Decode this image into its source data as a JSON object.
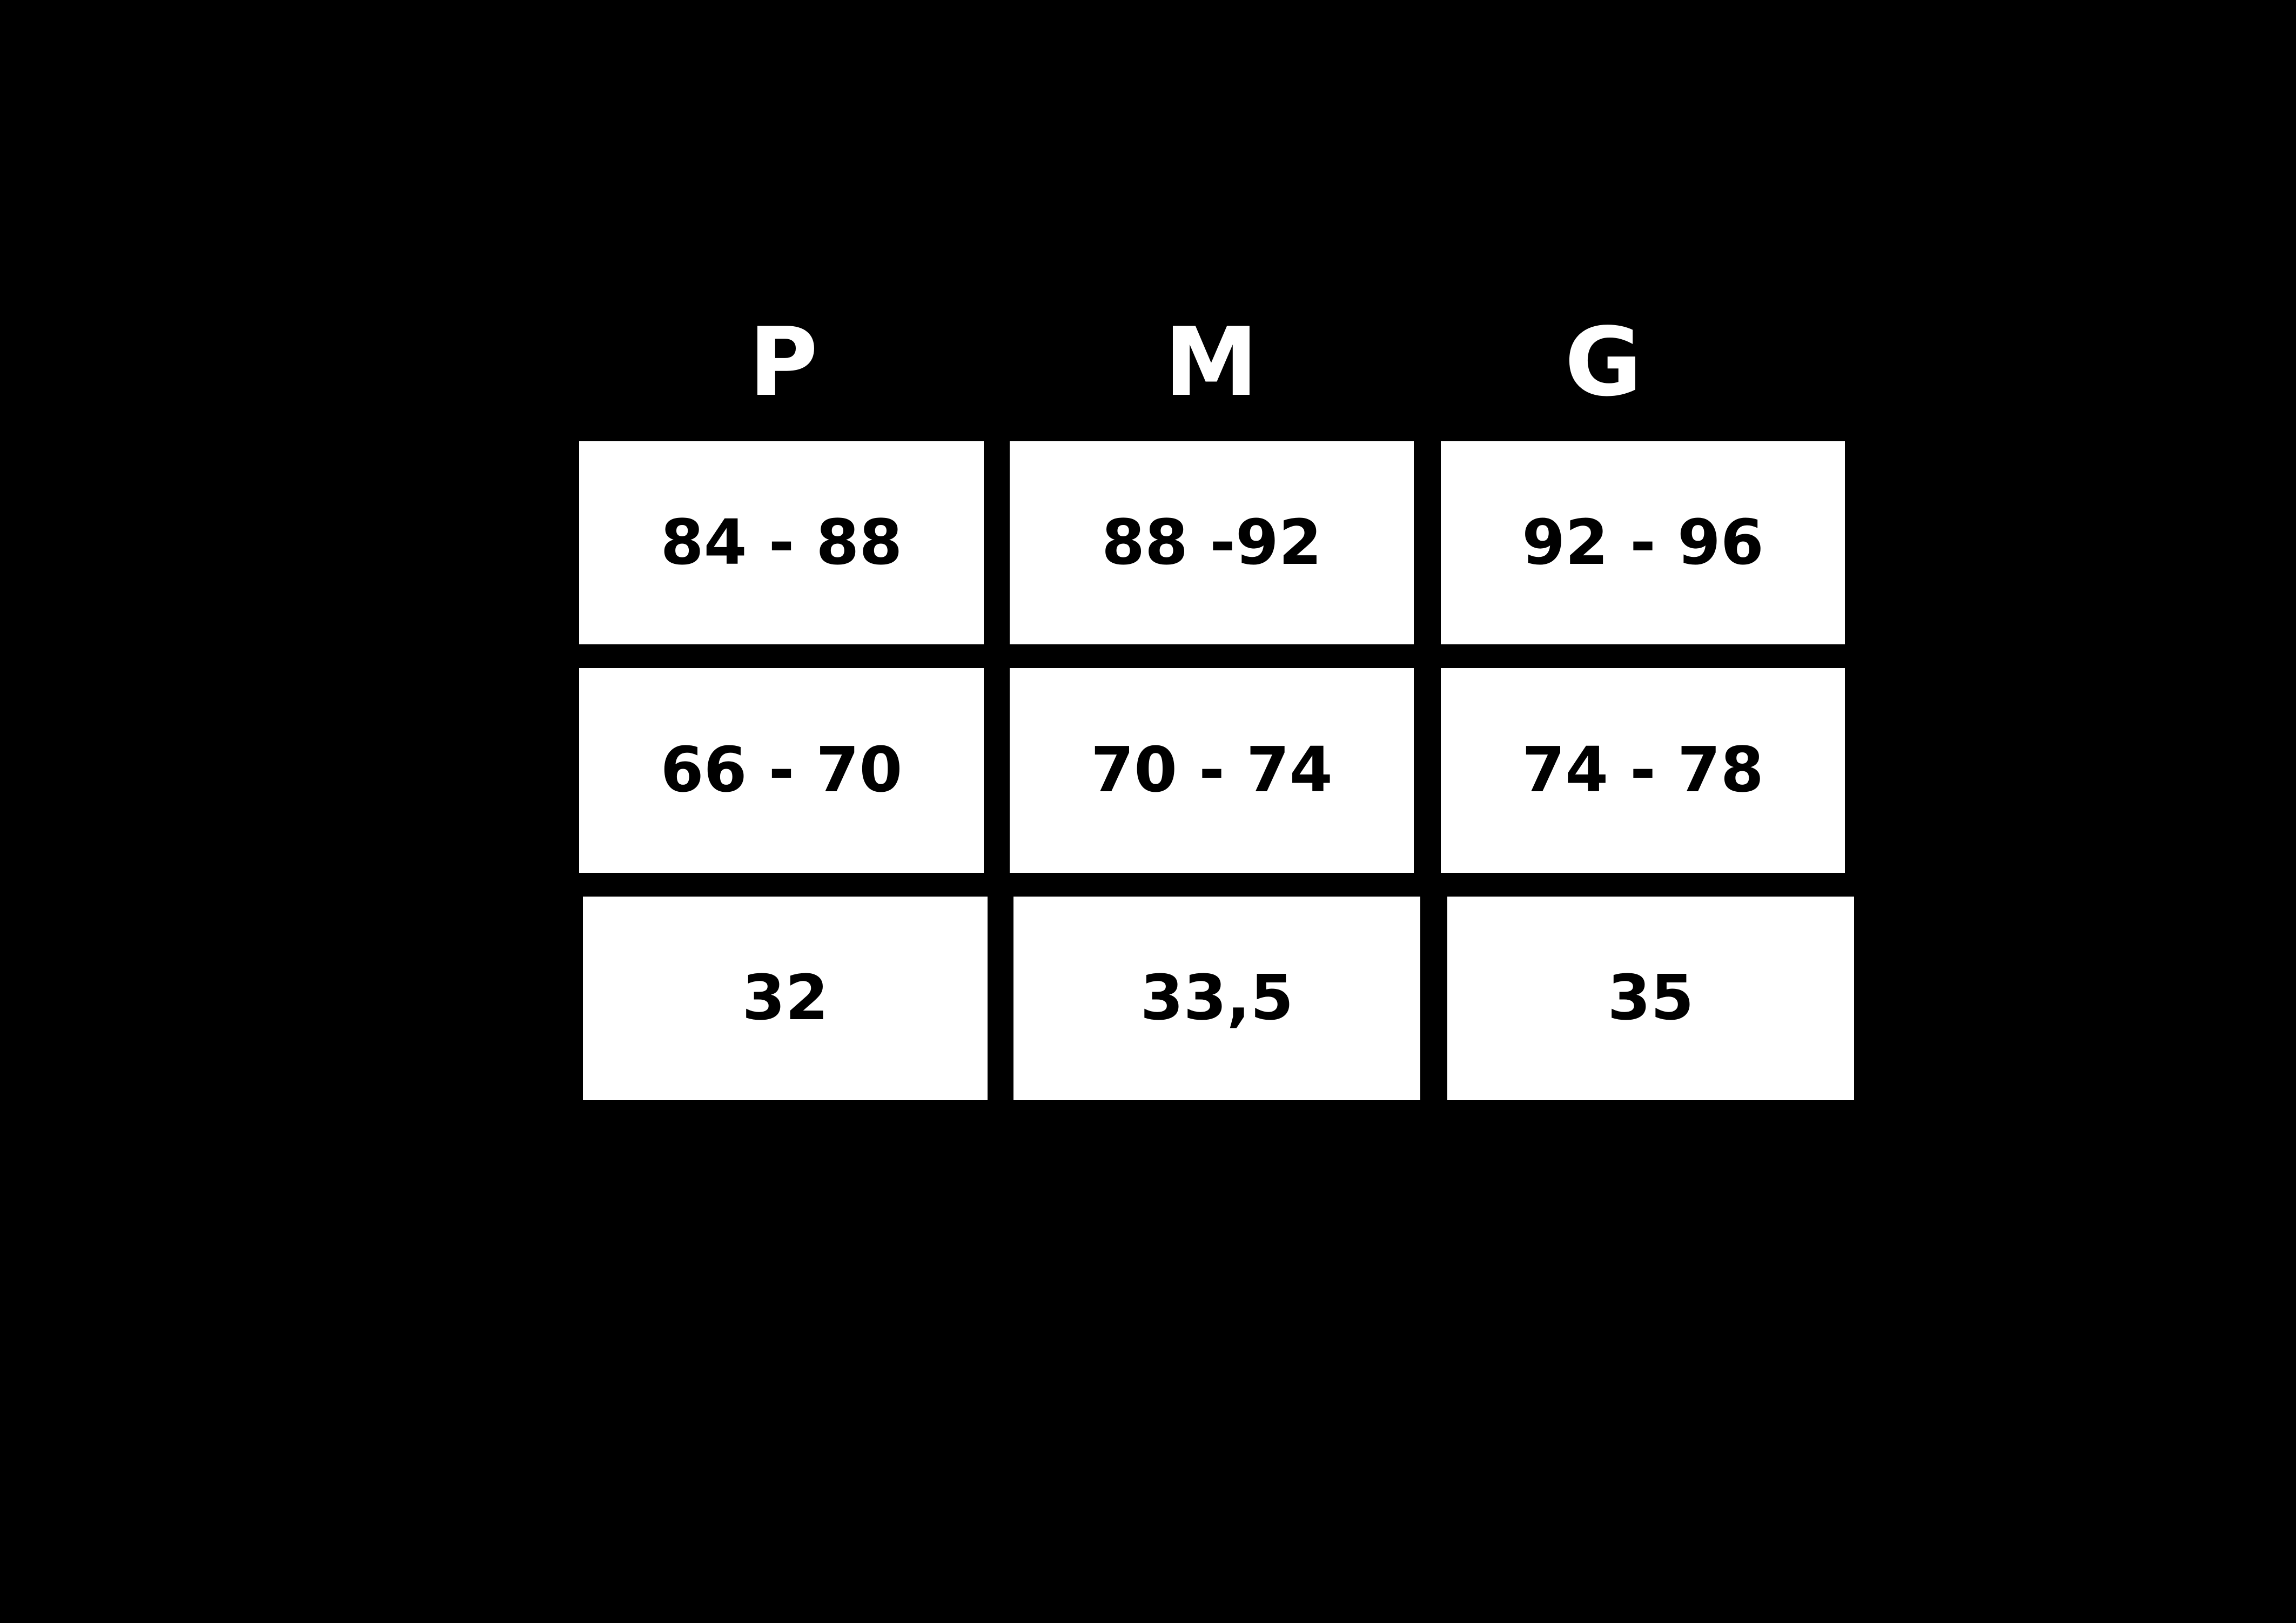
{
  "chart_data": {
    "type": "table",
    "columns": [
      "P",
      "M",
      "G"
    ],
    "rows": [
      [
        "84 - 88",
        "88 -92",
        "92 - 96"
      ],
      [
        "66 - 70",
        "70 - 74",
        "74 - 78"
      ],
      [
        "32",
        "33,5",
        "35"
      ]
    ],
    "layout": {
      "grid_lines": "off",
      "header_position": "top"
    }
  },
  "colors": {
    "background": "#000000",
    "cell_bg": "#ffffff",
    "cell_text": "#000000",
    "header_text": "#ffffff"
  }
}
